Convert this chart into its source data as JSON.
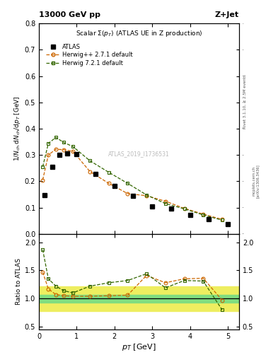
{
  "title_top": "13000 GeV pp",
  "title_right": "Z+Jet",
  "plot_title": "Scalar $\\Sigma(p_T)$ (ATLAS UE in Z production)",
  "ylabel_main": "1/N$_{ch}$ dN$_{ch}$/dp$_T$ [GeV]",
  "ylabel_ratio": "Ratio to ATLAS",
  "xlabel": "p$_T$ [GeV]",
  "watermark": "ATLAS_2019_I1736531",
  "right_label": "Rivet 3.1.10, ≥ 2.5M events",
  "arxiv_label": "[arXiv:1306.3436]",
  "mcplots_label": "mcplots.cern.ch",
  "atlas_x": [
    0.15,
    0.35,
    0.55,
    0.75,
    1.0,
    1.5,
    2.0,
    2.5,
    3.0,
    3.5,
    4.0,
    4.5,
    5.0
  ],
  "atlas_y": [
    0.148,
    0.255,
    0.3,
    0.305,
    0.303,
    0.228,
    0.183,
    0.145,
    0.103,
    0.097,
    0.072,
    0.055,
    0.038
  ],
  "herwig_pp_x": [
    0.1,
    0.25,
    0.45,
    0.65,
    0.9,
    1.35,
    1.85,
    2.35,
    2.85,
    3.35,
    3.85,
    4.35,
    4.85
  ],
  "herwig_pp_y": [
    0.205,
    0.3,
    0.322,
    0.32,
    0.314,
    0.237,
    0.192,
    0.153,
    0.145,
    0.124,
    0.097,
    0.075,
    0.055
  ],
  "herwig72_x": [
    0.1,
    0.25,
    0.45,
    0.65,
    0.9,
    1.35,
    1.85,
    2.35,
    2.85,
    3.35,
    3.85,
    4.35,
    4.85
  ],
  "herwig72_y": [
    0.255,
    0.344,
    0.367,
    0.348,
    0.332,
    0.278,
    0.234,
    0.192,
    0.148,
    0.115,
    0.095,
    0.072,
    0.052
  ],
  "ratio_herwig_pp_x": [
    0.1,
    0.25,
    0.45,
    0.65,
    0.9,
    1.35,
    1.85,
    2.35,
    2.85,
    3.35,
    3.85,
    4.35,
    4.85
  ],
  "ratio_herwig_pp_y": [
    1.47,
    1.17,
    1.07,
    1.05,
    1.04,
    1.04,
    1.05,
    1.06,
    1.41,
    1.28,
    1.35,
    1.36,
    0.97
  ],
  "ratio_herwig72_x": [
    0.1,
    0.25,
    0.45,
    0.65,
    0.9,
    1.35,
    1.85,
    2.35,
    2.85,
    3.35,
    3.85,
    4.35,
    4.85
  ],
  "ratio_herwig72_y": [
    1.87,
    1.35,
    1.22,
    1.14,
    1.1,
    1.22,
    1.28,
    1.32,
    1.44,
    1.19,
    1.32,
    1.31,
    0.8
  ],
  "band_x1": 0.0,
  "band_x2": 5.3,
  "band_green_lo": 0.93,
  "band_green_hi": 1.07,
  "band_yellow_lo": 0.78,
  "band_yellow_hi": 1.22,
  "color_atlas": "#000000",
  "color_herwig_pp": "#cc6600",
  "color_herwig72": "#336600",
  "color_green_band": "#80dd80",
  "color_yellow_band": "#eeee60",
  "xlim": [
    0.0,
    5.3
  ],
  "ylim_main": [
    0.0,
    0.8
  ],
  "ylim_ratio": [
    0.45,
    2.15
  ],
  "yticks_main": [
    0.0,
    0.1,
    0.2,
    0.3,
    0.4,
    0.5,
    0.6,
    0.7,
    0.8
  ],
  "yticks_ratio": [
    0.5,
    1.0,
    1.5,
    2.0
  ],
  "xticks": [
    0,
    1,
    2,
    3,
    4,
    5
  ]
}
